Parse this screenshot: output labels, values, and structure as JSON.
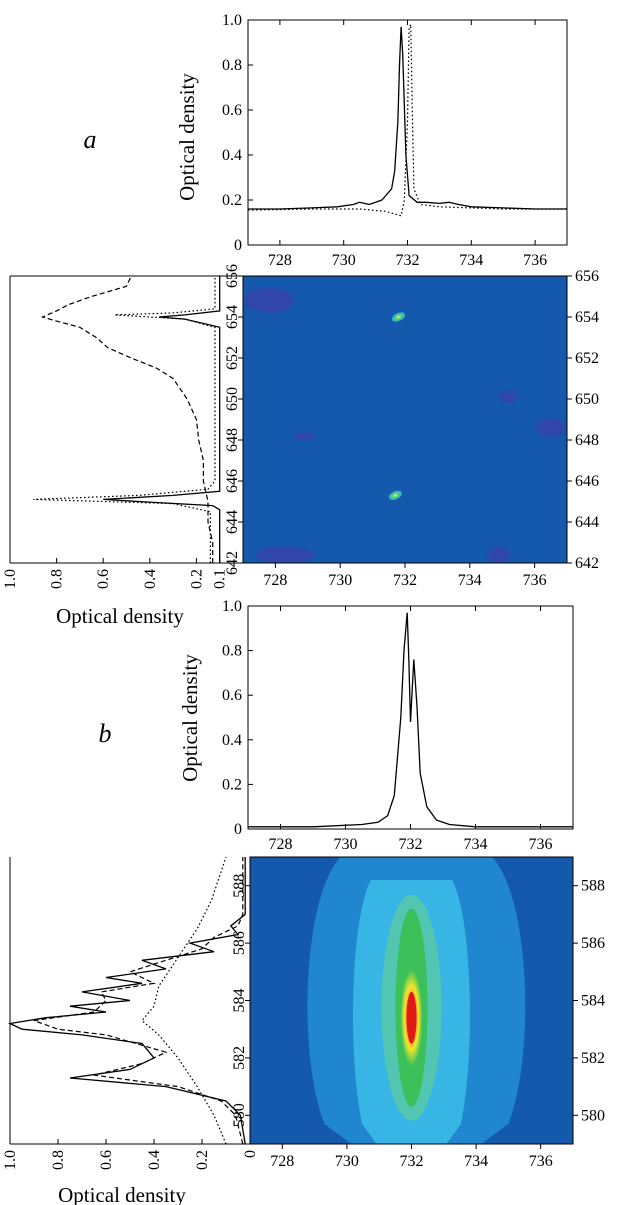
{
  "figure": {
    "panels": [
      {
        "label": "a",
        "top_plot": {
          "ylabel": "Optical density"
        },
        "side_plot": {
          "xlabel": "Optical density"
        },
        "heatmap": {
          "title": ""
        }
      },
      {
        "label": "b",
        "top_plot": {
          "ylabel": "Optical density"
        },
        "side_plot": {
          "xlabel": "Optical density"
        },
        "heatmap": {
          "title": ""
        }
      }
    ]
  },
  "chart_data": [
    {
      "id": "a-top",
      "type": "line",
      "title": "",
      "xlabel": "",
      "ylabel": "Optical density",
      "xlim": [
        727,
        737
      ],
      "ylim": [
        0,
        1.0
      ],
      "xticks": [
        728,
        730,
        732,
        734,
        736
      ],
      "yticks": [
        0,
        0.2,
        0.4,
        0.6,
        0.8,
        1.0
      ],
      "series": [
        {
          "style": "solid",
          "x": [
            727,
            728,
            729,
            729.8,
            730.3,
            730.5,
            730.8,
            731.2,
            731.5,
            731.6,
            731.7,
            731.75,
            731.8,
            731.85,
            731.95,
            732.05,
            732.3,
            732.6,
            733.0,
            733.3,
            733.6,
            734,
            735,
            736,
            737
          ],
          "y": [
            0.16,
            0.16,
            0.165,
            0.17,
            0.18,
            0.19,
            0.18,
            0.2,
            0.25,
            0.33,
            0.55,
            0.8,
            0.97,
            0.85,
            0.4,
            0.22,
            0.19,
            0.19,
            0.185,
            0.19,
            0.18,
            0.17,
            0.165,
            0.16,
            0.16
          ]
        },
        {
          "style": "dotted",
          "x": [
            727,
            729,
            730.5,
            731.3,
            731.8,
            731.9,
            732.0,
            732.05,
            732.1,
            732.15,
            732.2,
            732.4,
            733,
            735,
            737
          ],
          "y": [
            0.155,
            0.16,
            0.16,
            0.15,
            0.13,
            0.2,
            0.55,
            0.96,
            0.98,
            0.6,
            0.25,
            0.18,
            0.17,
            0.16,
            0.16
          ]
        }
      ]
    },
    {
      "id": "a-side",
      "type": "line",
      "title": "",
      "xlabel": "Optical density",
      "ylabel": "",
      "x_reversed": true,
      "xlim": [
        1.0,
        0
      ],
      "ylim": [
        642,
        656
      ],
      "xticks": [
        1.0,
        0.8,
        0.6,
        0.4,
        0.2,
        0.1
      ],
      "xtick_labels": [
        "1.0",
        "0.8",
        "0.6",
        "0.4",
        "0.2",
        "0.1"
      ],
      "yticks": [
        642,
        644,
        646,
        648,
        650,
        652,
        654,
        656
      ],
      "series": [
        {
          "style": "solid",
          "y": [
            642,
            644.6,
            644.8,
            645.0,
            645.1,
            645.3,
            645.5,
            646,
            650,
            653.5,
            653.9,
            654.0,
            654.1,
            654.3,
            656
          ],
          "x": [
            0.1,
            0.1,
            0.13,
            0.45,
            0.6,
            0.3,
            0.1,
            0.1,
            0.1,
            0.1,
            0.25,
            0.36,
            0.25,
            0.1,
            0.1
          ]
        },
        {
          "style": "dashed",
          "y": [
            642,
            643,
            644,
            645,
            646,
            647,
            648,
            649,
            650,
            651,
            651.5,
            652,
            652.5,
            653,
            653.5,
            653.8,
            654.0,
            654.3,
            654.6,
            655,
            655.5,
            656
          ],
          "x": [
            0.13,
            0.13,
            0.15,
            0.15,
            0.17,
            0.17,
            0.19,
            0.2,
            0.24,
            0.3,
            0.37,
            0.48,
            0.58,
            0.63,
            0.7,
            0.8,
            0.86,
            0.8,
            0.75,
            0.65,
            0.5,
            0.48
          ]
        },
        {
          "style": "dotted",
          "y": [
            642,
            644.5,
            644.9,
            645.1,
            645.3,
            645.6,
            646,
            653.5,
            653.9,
            654.1,
            654.2,
            654.4,
            656
          ],
          "x": [
            0.14,
            0.14,
            0.3,
            0.9,
            0.45,
            0.15,
            0.12,
            0.12,
            0.25,
            0.55,
            0.3,
            0.12,
            0.12
          ]
        }
      ]
    },
    {
      "id": "a-map",
      "type": "heatmap",
      "title": "",
      "xlabel": "",
      "ylabel": "",
      "xlim": [
        727,
        737
      ],
      "ylim": [
        642,
        656
      ],
      "xticks": [
        728,
        730,
        732,
        734,
        736
      ],
      "yticks": [
        642,
        644,
        646,
        648,
        650,
        652,
        654,
        656
      ],
      "background": "#1559ad",
      "features": [
        {
          "x": 731.8,
          "y": 654.0,
          "level": 0.6
        },
        {
          "x": 731.7,
          "y": 645.3,
          "level": 0.65
        }
      ]
    },
    {
      "id": "b-top",
      "type": "line",
      "title": "",
      "xlabel": "",
      "ylabel": "Optical density",
      "xlim": [
        727,
        737
      ],
      "ylim": [
        0,
        1.0
      ],
      "xticks": [
        728,
        730,
        732,
        734,
        736
      ],
      "yticks": [
        0,
        0.2,
        0.4,
        0.6,
        0.8,
        1.0
      ],
      "series": [
        {
          "style": "solid",
          "x": [
            727,
            729,
            730.5,
            731.0,
            731.3,
            731.5,
            731.7,
            731.8,
            731.9,
            731.95,
            732.0,
            732.1,
            732.2,
            732.3,
            732.5,
            732.8,
            733.2,
            734,
            737
          ],
          "y": [
            0.01,
            0.01,
            0.02,
            0.03,
            0.06,
            0.15,
            0.5,
            0.8,
            0.97,
            0.75,
            0.48,
            0.76,
            0.55,
            0.25,
            0.1,
            0.04,
            0.02,
            0.01,
            0.01
          ]
        }
      ]
    },
    {
      "id": "b-side",
      "type": "line",
      "title": "",
      "xlabel": "Optical density",
      "ylabel": "",
      "x_reversed": true,
      "xlim": [
        1.0,
        0
      ],
      "ylim": [
        579,
        589
      ],
      "xticks": [
        1.0,
        0.8,
        0.6,
        0.4,
        0.2,
        0.0
      ],
      "xtick_labels": [
        "1.0",
        "0.8",
        "0.6",
        "0.4",
        "0.2",
        "0"
      ],
      "yticks": [
        580,
        582,
        584,
        586,
        588
      ],
      "series": [
        {
          "style": "solid",
          "y": [
            579,
            580,
            580.5,
            581,
            581.3,
            581.6,
            582,
            582.5,
            582.8,
            583.0,
            583.2,
            583.4,
            583.6,
            583.8,
            584.0,
            584.3,
            584.6,
            584.8,
            585.1,
            585.4,
            585.7,
            586.0,
            586.3,
            586.6,
            587,
            589
          ],
          "x": [
            0.02,
            0.04,
            0.1,
            0.35,
            0.75,
            0.5,
            0.4,
            0.45,
            0.7,
            0.95,
            1.0,
            0.85,
            0.6,
            0.75,
            0.5,
            0.7,
            0.45,
            0.6,
            0.35,
            0.45,
            0.15,
            0.25,
            0.05,
            0.08,
            0.02,
            0.02
          ]
        },
        {
          "style": "dashed",
          "y": [
            579,
            580,
            580.5,
            581,
            581.4,
            581.8,
            582.2,
            582.8,
            583.0,
            583.3,
            583.6,
            584.0,
            584.3,
            584.6,
            585.0,
            585.4,
            585.8,
            586.2,
            586.6,
            587,
            589
          ],
          "x": [
            0.03,
            0.06,
            0.12,
            0.3,
            0.65,
            0.45,
            0.35,
            0.6,
            0.8,
            0.9,
            0.65,
            0.6,
            0.62,
            0.4,
            0.5,
            0.35,
            0.2,
            0.15,
            0.05,
            0.03,
            0.03
          ]
        },
        {
          "style": "dotted",
          "y": [
            579,
            580,
            581,
            582,
            582.8,
            583.3,
            583.8,
            584.5,
            585.5,
            586.5,
            587.5,
            588.5,
            589
          ],
          "x": [
            0.1,
            0.15,
            0.22,
            0.3,
            0.38,
            0.45,
            0.4,
            0.38,
            0.3,
            0.22,
            0.16,
            0.12,
            0.1
          ]
        }
      ]
    },
    {
      "id": "b-map",
      "type": "heatmap",
      "title": "",
      "xlabel": "",
      "ylabel": "",
      "xlim": [
        727,
        737
      ],
      "ylim": [
        579,
        589
      ],
      "xticks": [
        728,
        730,
        732,
        734,
        736
      ],
      "yticks": [
        580,
        582,
        584,
        586,
        588
      ],
      "background": "#1559ad",
      "features": [
        {
          "shape": "envelope",
          "color": "#1f86cf",
          "x_range": [
            728.8,
            735.5
          ],
          "y_range": [
            579,
            589
          ]
        },
        {
          "shape": "envelope",
          "color": "#37b6e6",
          "x_range": [
            730.2,
            733.8
          ],
          "y_range": [
            579,
            588.2
          ]
        },
        {
          "shape": "core",
          "x": 732.0,
          "y_range": [
            580.3,
            587.2
          ],
          "peak_y": 583.4
        }
      ]
    }
  ]
}
